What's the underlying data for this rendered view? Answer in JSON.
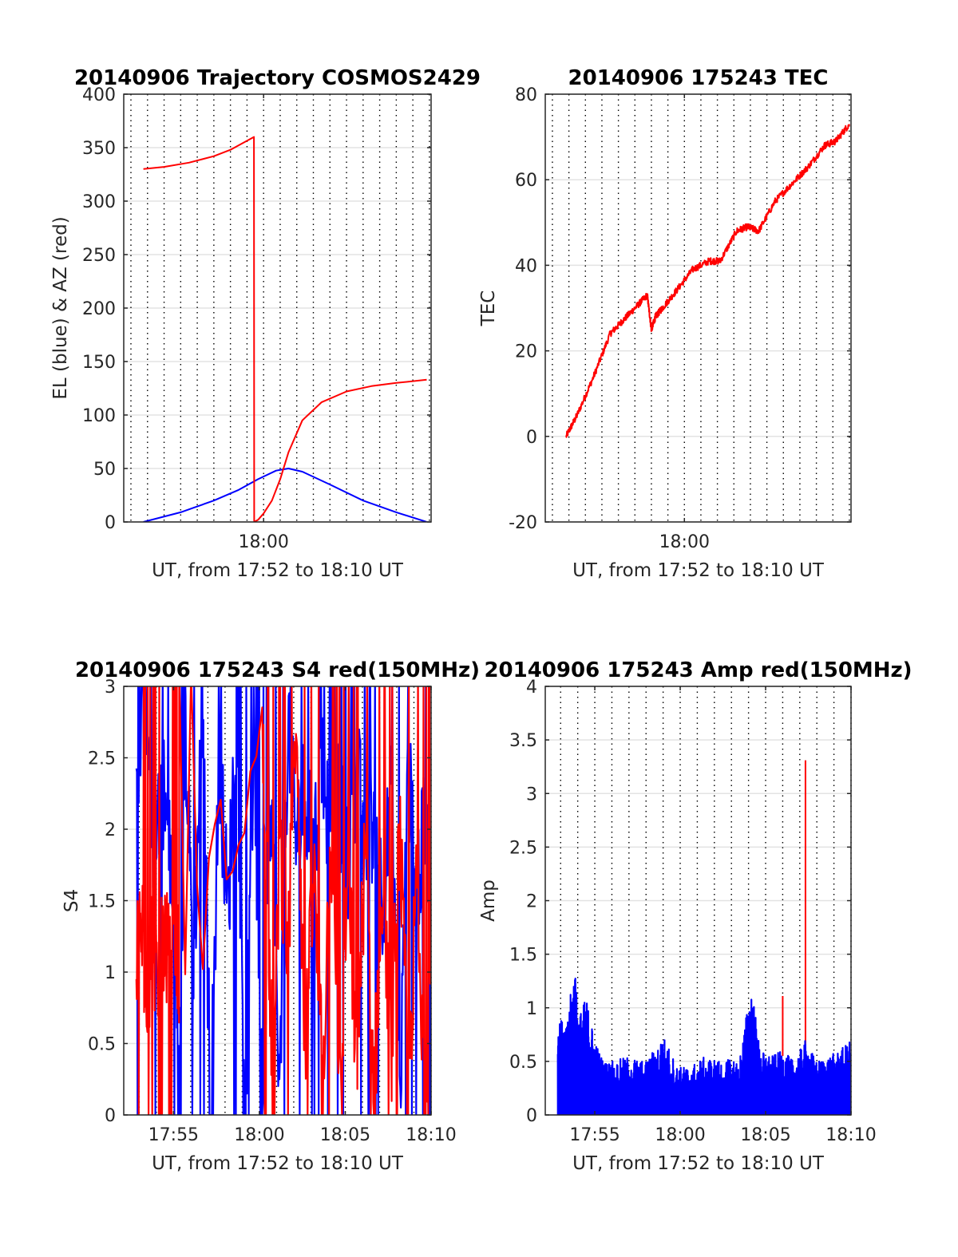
{
  "chart_data": [
    {
      "type": "line",
      "title": "20140906 Trajectory COSMOS2429",
      "xlabel": "UT, from 17:52 to 18:10 UT",
      "ylabel": "EL (blue) & AZ (red)",
      "xlim": [
        "17:52",
        "18:10"
      ],
      "ylim": [
        0,
        400
      ],
      "yticks": [
        0,
        50,
        100,
        150,
        200,
        250,
        300,
        350,
        400
      ],
      "xticks": [
        {
          "value": "18:00",
          "label": "18:00"
        }
      ],
      "grid": true,
      "colors": {
        "EL": "#0000ff",
        "AZ": "#ff0000"
      },
      "series": [
        {
          "color": "#0000ff",
          "x": [
            "17:52:45",
            "17:55:00",
            "17:57:00",
            "17:58:30",
            "17:59:40",
            "18:00:45",
            "18:01:30",
            "18:02:20",
            "18:04:00",
            "18:06:00",
            "18:08:00",
            "18:09:50"
          ],
          "values": [
            0,
            9,
            20,
            30,
            40,
            48,
            50,
            47,
            35,
            20,
            9,
            0
          ]
        },
        {
          "color": "#ff0000",
          "x": [
            "17:52:45",
            "17:54:00",
            "17:55:30",
            "17:57:00",
            "17:58:00",
            "17:59:25",
            "17:59:26",
            "17:59:40",
            "18:00:00",
            "18:00:30",
            "18:01:00",
            "18:01:30",
            "18:02:20",
            "18:03:30",
            "18:05:00",
            "18:06:30",
            "18:08:00",
            "18:09:50"
          ],
          "values": [
            330,
            332,
            336,
            342,
            348,
            360,
            0,
            2,
            8,
            20,
            40,
            65,
            95,
            112,
            122,
            127,
            130,
            133
          ]
        }
      ]
    },
    {
      "type": "line",
      "title": "20140906 175243 TEC",
      "xlabel": "UT, from 17:52 to 18:10 UT",
      "ylabel": "TEC",
      "xlim": [
        "17:52",
        "18:10"
      ],
      "ylim": [
        -20,
        80
      ],
      "yticks": [
        -20,
        0,
        20,
        40,
        60,
        80
      ],
      "xticks": [
        {
          "value": "18:00",
          "label": "18:00"
        }
      ],
      "grid": true,
      "series": [
        {
          "color": "#ff0000",
          "x": [
            "17:52:50",
            "17:53:30",
            "17:54:30",
            "17:55:30",
            "17:56:15",
            "17:57:00",
            "17:57:45",
            "17:58:00",
            "17:58:15",
            "17:58:40",
            "17:59:30",
            "18:00:30",
            "18:01:30",
            "18:02:10",
            "18:03:10",
            "18:03:50",
            "18:04:30",
            "18:05:30",
            "18:06:30",
            "18:07:30",
            "18:08:30",
            "18:09:10",
            "18:10:00"
          ],
          "values": [
            0,
            5,
            14,
            24,
            27,
            30,
            33,
            25,
            28,
            30,
            34,
            39,
            41,
            41,
            48,
            49,
            48,
            55,
            59,
            63,
            68,
            69,
            73
          ]
        }
      ]
    },
    {
      "type": "line",
      "title": "20140906 175243 S4 red(150MHz)",
      "xlabel": "UT, from 17:52 to 18:10 UT",
      "ylabel": "S4",
      "xlim": [
        "17:52",
        "18:10"
      ],
      "ylim": [
        0,
        3
      ],
      "yticks": [
        0,
        0.5,
        1,
        1.5,
        2,
        2.5,
        3
      ],
      "xticks": [
        {
          "value": "17:55",
          "label": "17:55"
        },
        {
          "value": "18:00",
          "label": "18:00"
        },
        {
          "value": "18:05",
          "label": "18:05"
        },
        {
          "value": "18:10",
          "label": "18:10"
        }
      ],
      "grid": true,
      "series": [
        {
          "color": "#0000ff",
          "x": [
            "17:52:50",
            "17:53:20",
            "17:53:50",
            "17:54:20",
            "17:54:50",
            "17:55:20",
            "17:55:40",
            "17:56:10",
            "17:56:40",
            "17:57:10",
            "17:57:40",
            "17:58:10",
            "17:58:40",
            "17:59:10",
            "17:59:40",
            "18:00:10",
            "18:00:40",
            "18:01:10",
            "18:01:40",
            "18:02:10",
            "18:02:40",
            "18:03:10",
            "18:03:40",
            "18:04:10",
            "18:04:40",
            "18:05:10",
            "18:05:40",
            "18:06:10",
            "18:06:40",
            "18:07:10",
            "18:07:40",
            "18:08:10",
            "18:08:40",
            "18:09:10",
            "18:09:40",
            "18:10:00"
          ],
          "values": [
            2.2,
            3.0,
            1.9,
            2.4,
            1.7,
            0.0,
            2.8,
            1.0,
            2.9,
            0.0,
            2.5,
            1.4,
            2.9,
            0.0,
            2.6,
            0.0,
            2.4,
            0.0,
            2.8,
            1.9,
            2.3,
            1.7,
            2.6,
            1.8,
            2.2,
            1.7,
            2.5,
            1.8,
            2.1,
            1.5,
            2.2,
            0.0,
            2.4,
            1.6,
            2.0,
            1.6
          ]
        },
        {
          "color": "#ff0000",
          "x": [
            "17:52:50",
            "17:53:10",
            "17:53:30",
            "17:53:50",
            "17:54:10",
            "17:54:30",
            "17:54:50",
            "17:55:10",
            "17:55:20",
            "18:00:10",
            "18:00:30",
            "18:00:50",
            "18:01:10",
            "18:01:40",
            "18:02:10",
            "18:02:40",
            "18:03:10",
            "18:03:40",
            "18:04:10",
            "18:04:40",
            "18:05:10",
            "18:05:40",
            "18:06:10",
            "18:06:40",
            "18:07:10",
            "18:07:40",
            "18:08:10",
            "18:08:40",
            "18:09:10",
            "18:09:40",
            "18:10:00"
          ],
          "values": [
            1.1,
            1.3,
            0.9,
            1.2,
            1.0,
            1.3,
            0.9,
            1.2,
            1.0,
            2.6,
            1.5,
            0.0,
            2.0,
            1.1,
            2.9,
            0.3,
            1.7,
            0.2,
            2.0,
            0.0,
            1.8,
            0.3,
            1.9,
            0.1,
            1.7,
            0.4,
            2.0,
            0.2,
            1.6,
            0.0,
            1.5
          ]
        }
      ]
    },
    {
      "type": "line",
      "title": "20140906 175243 Amp red(150MHz)",
      "xlabel": "UT, from 17:52 to 18:10 UT",
      "ylabel": "Amp",
      "xlim": [
        "17:52",
        "18:10"
      ],
      "ylim": [
        0,
        4
      ],
      "yticks": [
        0,
        0.5,
        1,
        1.5,
        2,
        2.5,
        3,
        3.5,
        4
      ],
      "xticks": [
        {
          "value": "17:55",
          "label": "17:55"
        },
        {
          "value": "18:00",
          "label": "18:00"
        },
        {
          "value": "18:05",
          "label": "18:05"
        },
        {
          "value": "18:10",
          "label": "18:10"
        }
      ],
      "grid": true,
      "series": [
        {
          "color": "#ff0000",
          "x": [
            "18:06:00",
            "18:07:20"
          ],
          "values": [
            1.11,
            3.31
          ]
        },
        {
          "color": "#0000ff",
          "x": [
            "17:52:50",
            "17:53:20",
            "17:53:50",
            "17:54:00",
            "17:54:30",
            "17:55:00",
            "17:55:30",
            "17:56:00",
            "17:57:00",
            "17:58:00",
            "17:59:00",
            "17:59:50",
            "18:00:30",
            "18:01:30",
            "18:02:30",
            "18:03:30",
            "18:04:10",
            "18:04:40",
            "18:05:20",
            "18:06:00",
            "18:06:40",
            "18:07:20",
            "18:08:00",
            "18:08:40",
            "18:09:20",
            "18:10:00"
          ],
          "values": [
            0.95,
            0.8,
            1.45,
            0.9,
            1.1,
            0.7,
            0.5,
            0.5,
            0.55,
            0.5,
            0.75,
            0.45,
            0.45,
            0.55,
            0.5,
            0.55,
            1.25,
            0.6,
            0.55,
            0.6,
            0.5,
            0.7,
            0.5,
            0.55,
            0.6,
            0.7
          ]
        }
      ]
    }
  ]
}
